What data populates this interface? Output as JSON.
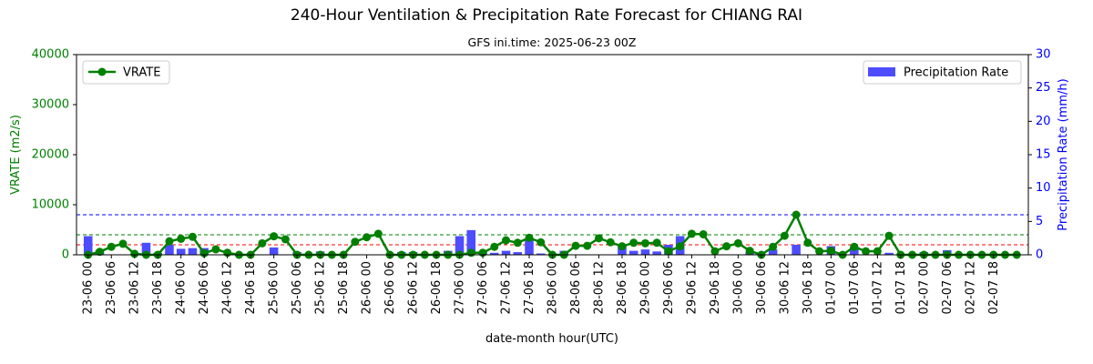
{
  "chart_data": {
    "type": "bar+line (dual axis)",
    "title": "240-Hour Ventilation & Precipitation Rate Forecast for CHIANG RAI",
    "subtitle": "GFS ini.time: 2025-06-23 00Z",
    "xlabel": "date-month hour(UTC)",
    "ylabel_left": "VRATE (m2/s)",
    "ylabel_right": "Precipitation Rate (mm/h)",
    "ylim_left": [
      0,
      40000
    ],
    "ylim_right": [
      0,
      30
    ],
    "yticks_left": [
      "0",
      "10000",
      "20000",
      "30000",
      "40000"
    ],
    "yticks_right": [
      "0",
      "5",
      "10",
      "15",
      "20",
      "25",
      "30"
    ],
    "left_axis_color": "#008000",
    "right_axis_color": "#0000ff",
    "line_color": "#008000",
    "bar_color": "#4d4dff",
    "x_tick_labels": [
      "23-06 00",
      "23-06 06",
      "23-06 12",
      "23-06 18",
      "24-06 00",
      "24-06 06",
      "24-06 12",
      "24-06 18",
      "25-06 00",
      "25-06 06",
      "25-06 12",
      "25-06 18",
      "26-06 00",
      "26-06 06",
      "26-06 12",
      "26-06 18",
      "27-06 00",
      "27-06 06",
      "27-06 12",
      "27-06 18",
      "28-06 00",
      "28-06 06",
      "28-06 12",
      "28-06 18",
      "29-06 00",
      "29-06 06",
      "29-06 12",
      "29-06 18",
      "30-06 00",
      "30-06 06",
      "30-06 12",
      "30-06 18",
      "01-07 00",
      "01-07 06",
      "01-07 12",
      "01-07 18",
      "02-07 00",
      "02-07 06",
      "02-07 12",
      "02-07 18"
    ],
    "x_hours": [
      0,
      3,
      6,
      9,
      12,
      15,
      18,
      21,
      24,
      27,
      30,
      33,
      36,
      39,
      42,
      45,
      48,
      51,
      54,
      57,
      60,
      63,
      66,
      69,
      72,
      75,
      78,
      81,
      84,
      87,
      90,
      93,
      96,
      99,
      102,
      105,
      108,
      111,
      114,
      117,
      120,
      123,
      126,
      129,
      132,
      135,
      138,
      141,
      144,
      147,
      150,
      153,
      156,
      159,
      162,
      165,
      168,
      171,
      174,
      177,
      180,
      183,
      186,
      189,
      192,
      195,
      198,
      201,
      204,
      207,
      210,
      213,
      216,
      219,
      222,
      225,
      228,
      231,
      234,
      237,
      240
    ],
    "series": [
      {
        "name": "VRATE",
        "axis": "left",
        "kind": "line",
        "values": [
          0,
          600,
          1600,
          2200,
          200,
          0,
          0,
          2700,
          3200,
          3600,
          300,
          1100,
          400,
          0,
          0,
          2300,
          3700,
          3100,
          0,
          0,
          0,
          0,
          0,
          2600,
          3500,
          4200,
          0,
          0,
          0,
          0,
          0,
          0,
          0,
          400,
          400,
          1600,
          2900,
          2400,
          3400,
          2500,
          0,
          0,
          1800,
          1800,
          3300,
          2500,
          1700,
          2400,
          2300,
          2400,
          700,
          1700,
          4200,
          4100,
          700,
          1700,
          2300,
          800,
          0,
          1600,
          3800,
          8000,
          2400,
          700,
          800,
          0,
          1600,
          700,
          700,
          3800,
          0,
          0,
          0,
          0,
          0,
          0,
          0,
          0,
          0,
          0,
          0
        ]
      },
      {
        "name": "Precipitation Rate",
        "axis": "right",
        "kind": "bar",
        "values": [
          2.8,
          0.7,
          0,
          0,
          0,
          1.8,
          0.3,
          1.5,
          0.9,
          1,
          1,
          0,
          0,
          0,
          0,
          0,
          1.1,
          0,
          0.4,
          0,
          0.5,
          0,
          0,
          0,
          0,
          0,
          0,
          0.4,
          0.4,
          0,
          0,
          0.6,
          2.8,
          3.7,
          0.5,
          0.3,
          0.6,
          0.4,
          2.4,
          0.2,
          0,
          0.6,
          0,
          0,
          0,
          0,
          1.4,
          0.6,
          0.8,
          0.5,
          1.5,
          2.8,
          0,
          0,
          0,
          0,
          0,
          0.4,
          0,
          0.8,
          0,
          1.5,
          0,
          0,
          1.3,
          0,
          1.2,
          0,
          0,
          0.3,
          0,
          0.2,
          0.4,
          0,
          0.7,
          0,
          0,
          0,
          0,
          0,
          0
        ]
      }
    ],
    "reference_lines": [
      {
        "axis": "right",
        "value": 6,
        "color": "#0000ff"
      },
      {
        "axis": "left",
        "value": 4000,
        "color": "#008000"
      },
      {
        "axis": "left",
        "value": 2000,
        "color": "#ff0000"
      }
    ],
    "legend": {
      "left": {
        "label": "VRATE",
        "position": "top-left"
      },
      "right": {
        "label": "Precipitation Rate",
        "position": "top-right"
      }
    }
  }
}
